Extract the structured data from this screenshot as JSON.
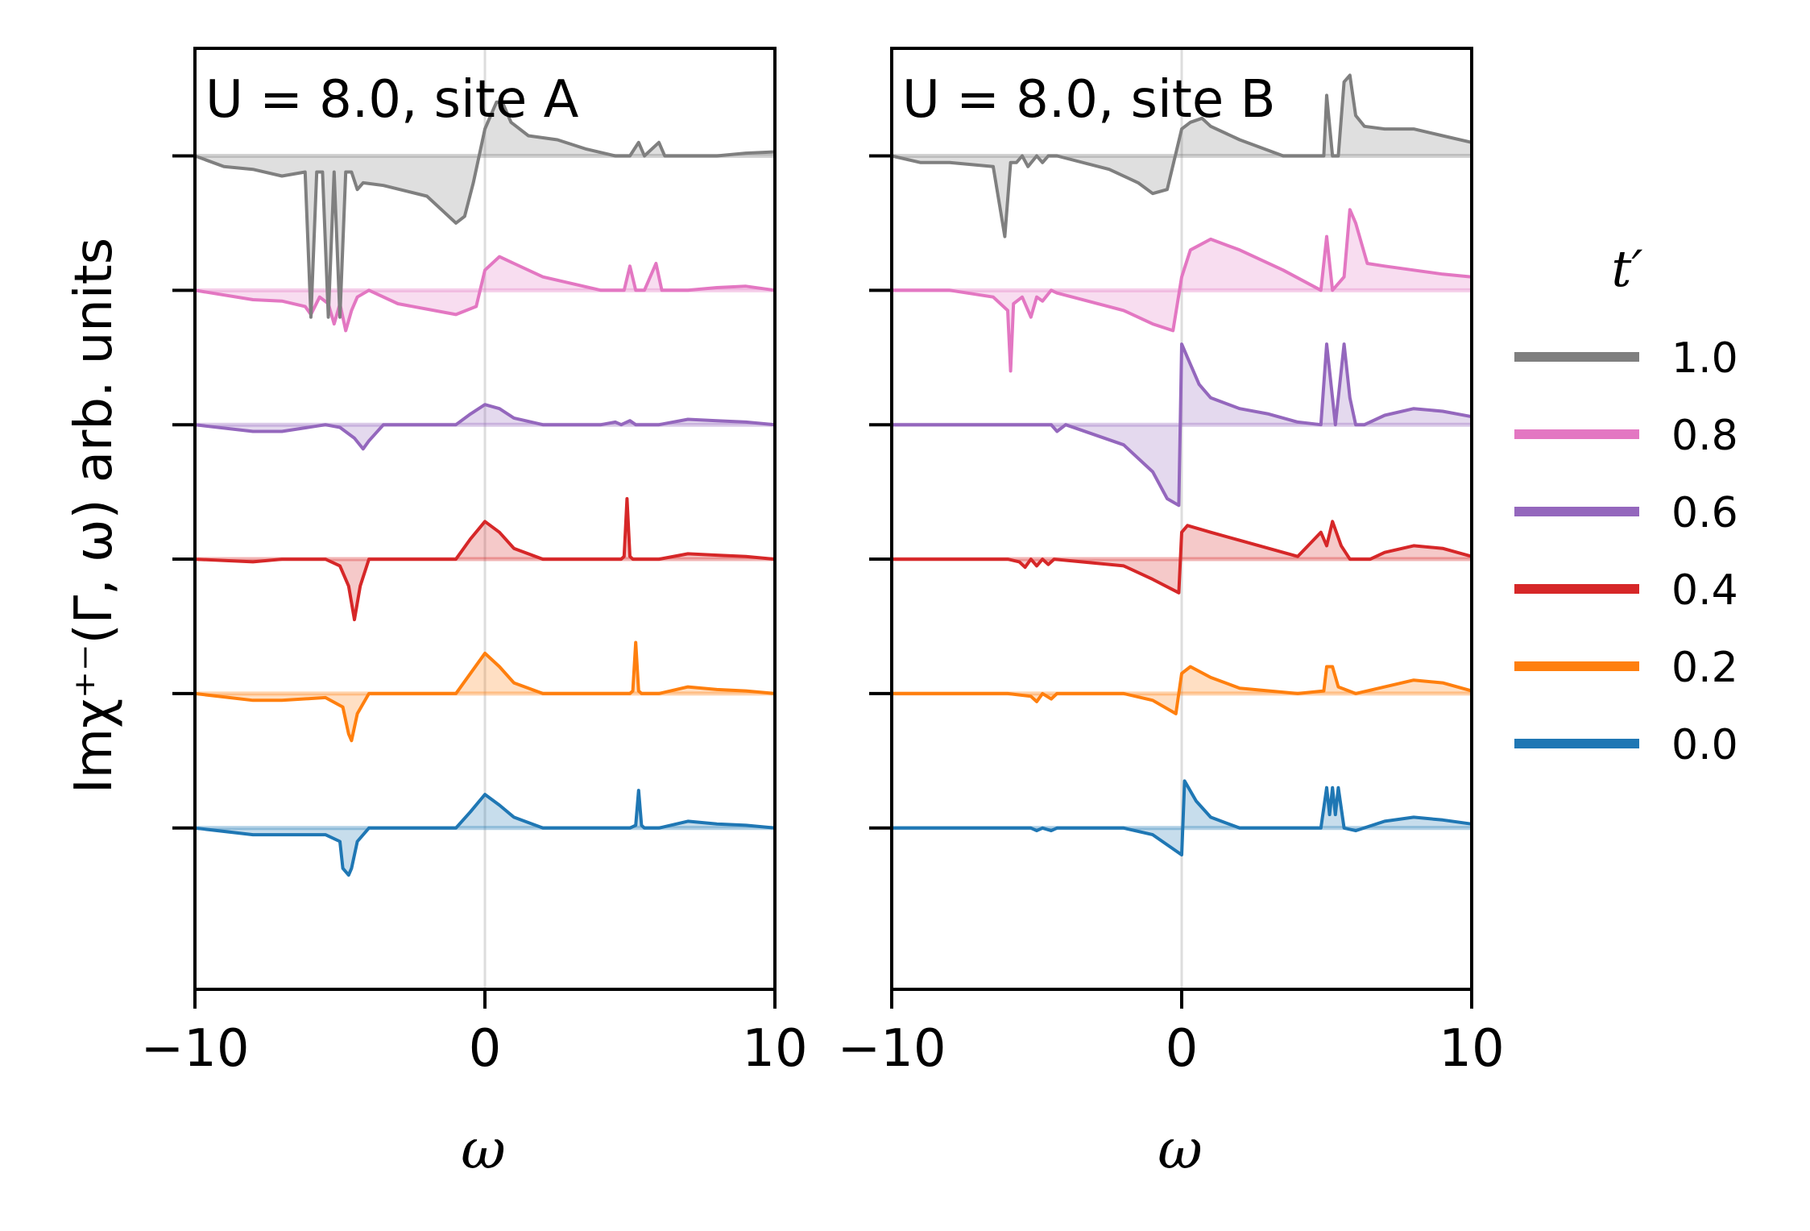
{
  "chart_data": {
    "type": "line",
    "ylabel": "Imχ⁺⁻(Γ, ω) arb. units",
    "xlabel": "ω",
    "xlim": [
      -10,
      10
    ],
    "xticks": [
      -10,
      0,
      10
    ],
    "xtick_labels": [
      "−10",
      "0",
      "10"
    ],
    "legend": {
      "title": "t′",
      "placement": "right",
      "entries": [
        {
          "label": "1.0",
          "color": "#7f7f7f"
        },
        {
          "label": "0.8",
          "color": "#e377c2"
        },
        {
          "label": "0.6",
          "color": "#9467bd"
        },
        {
          "label": "0.4",
          "color": "#d62728"
        },
        {
          "label": "0.2",
          "color": "#ff7f0e"
        },
        {
          "label": "0.0",
          "color": "#1f77b4"
        }
      ]
    },
    "offset_spacing": 1,
    "ylim": [
      -1.2,
      5.8
    ],
    "panels": [
      {
        "title": "U = 8.0, site A",
        "series": [
          {
            "name": "0.0",
            "color": "#1f77b4",
            "offset": 0,
            "x": [
              -10,
              -8,
              -7,
              -5.5,
              -5,
              -4.9,
              -4.7,
              -4.6,
              -4.4,
              -4,
              -1,
              -0.5,
              0,
              0.5,
              1,
              2,
              4,
              5,
              5.2,
              5.3,
              5.4,
              5.5,
              6,
              7,
              8,
              9,
              10
            ],
            "y": [
              0,
              -0.05,
              -0.05,
              -0.05,
              -0.1,
              -0.3,
              -0.35,
              -0.3,
              -0.1,
              0,
              0,
              0.12,
              0.25,
              0.17,
              0.08,
              0,
              0,
              0,
              0.02,
              0.28,
              0.02,
              0,
              0,
              0.05,
              0.03,
              0.02,
              0
            ]
          },
          {
            "name": "0.2",
            "color": "#ff7f0e",
            "offset": 1,
            "x": [
              -10,
              -8,
              -7,
              -5.5,
              -4.9,
              -4.7,
              -4.6,
              -4.4,
              -4,
              -1,
              -0.5,
              0,
              0.5,
              1,
              2,
              4,
              5,
              5.1,
              5.2,
              5.3,
              5.4,
              6,
              7,
              8,
              9,
              10
            ],
            "y": [
              0,
              -0.05,
              -0.05,
              -0.03,
              -0.1,
              -0.3,
              -0.35,
              -0.15,
              0,
              0,
              0.15,
              0.3,
              0.2,
              0.08,
              0,
              0,
              0,
              0.02,
              0.38,
              0.02,
              0,
              0,
              0.05,
              0.03,
              0.02,
              0
            ]
          },
          {
            "name": "0.4",
            "color": "#d62728",
            "offset": 2,
            "x": [
              -10,
              -8,
              -7,
              -5.5,
              -5,
              -4.7,
              -4.5,
              -4.3,
              -4,
              -1,
              -0.5,
              0,
              0.5,
              1,
              2,
              4,
              4.7,
              4.8,
              4.9,
              5,
              5.1,
              6,
              7,
              8,
              9,
              10
            ],
            "y": [
              0,
              -0.02,
              0,
              0,
              -0.05,
              -0.2,
              -0.45,
              -0.2,
              0,
              0,
              0.15,
              0.28,
              0.2,
              0.08,
              0,
              0,
              0,
              0.02,
              0.45,
              0.02,
              0,
              0,
              0.04,
              0.03,
              0.02,
              0
            ]
          },
          {
            "name": "0.6",
            "color": "#9467bd",
            "offset": 3,
            "x": [
              -10,
              -8,
              -7,
              -5.5,
              -5,
              -4.5,
              -4.2,
              -4,
              -3.5,
              -1,
              -0.5,
              0,
              0.5,
              1,
              2,
              4,
              4.5,
              4.7,
              5,
              5.2,
              5.5,
              6,
              7,
              8,
              9,
              10
            ],
            "y": [
              0,
              -0.05,
              -0.05,
              0,
              -0.02,
              -0.1,
              -0.18,
              -0.12,
              0,
              0,
              0.08,
              0.15,
              0.12,
              0.05,
              0,
              0,
              0.02,
              0,
              0.03,
              0,
              0,
              0,
              0.04,
              0.03,
              0.02,
              0
            ]
          },
          {
            "name": "0.8",
            "color": "#e377c2",
            "offset": 4,
            "x": [
              -10,
              -8,
              -7,
              -6.2,
              -6,
              -5.7,
              -5.4,
              -5.2,
              -5,
              -4.8,
              -4.6,
              -4.4,
              -4,
              -3,
              -1,
              -0.3,
              0,
              0.5,
              1,
              2,
              4,
              4.8,
              5,
              5.2,
              5.5,
              5.9,
              6.1,
              6.4,
              7,
              8,
              9,
              10
            ],
            "y": [
              0,
              -0.07,
              -0.08,
              -0.12,
              -0.18,
              -0.05,
              -0.1,
              -0.25,
              -0.1,
              -0.3,
              -0.15,
              -0.05,
              0,
              -0.1,
              -0.18,
              -0.12,
              0.15,
              0.25,
              0.2,
              0.1,
              0,
              0,
              0.18,
              0,
              0,
              0.2,
              0,
              0,
              0,
              0.02,
              0.03,
              0
            ]
          },
          {
            "name": "1.0",
            "color": "#7f7f7f",
            "offset": 5,
            "x": [
              -10,
              -9,
              -8,
              -7,
              -6.2,
              -6,
              -5.8,
              -5.6,
              -5.4,
              -5.2,
              -5.0,
              -4.8,
              -4.6,
              -4.4,
              -4.2,
              -3.5,
              -2,
              -1.5,
              -1,
              -0.7,
              -0.4,
              0,
              0.4,
              0.6,
              0.9,
              1.5,
              2.5,
              3.5,
              4.5,
              5,
              5.3,
              5.5,
              6,
              6.2,
              7,
              8,
              9,
              10
            ],
            "y": [
              0,
              -0.08,
              -0.1,
              -0.15,
              -0.12,
              -1.2,
              -0.12,
              -0.12,
              -1.2,
              -0.12,
              -1.2,
              -0.12,
              -0.12,
              -0.25,
              -0.2,
              -0.22,
              -0.3,
              -0.4,
              -0.5,
              -0.45,
              -0.2,
              0.2,
              0.4,
              0.4,
              0.25,
              0.15,
              0.12,
              0.05,
              0,
              0,
              0.1,
              0,
              0.1,
              0,
              0,
              0,
              0.02,
              0.03
            ]
          }
        ]
      },
      {
        "title": "U = 8.0, site B",
        "series": [
          {
            "name": "0.0",
            "color": "#1f77b4",
            "offset": 0,
            "x": [
              -10,
              -8,
              -6,
              -5.2,
              -5,
              -4.8,
              -4.5,
              -4.3,
              -2,
              -1,
              0,
              0.1,
              0.5,
              1,
              2,
              4,
              4.8,
              5,
              5.1,
              5.2,
              5.3,
              5.4,
              5.6,
              6,
              7,
              8,
              9,
              10
            ],
            "y": [
              0,
              0,
              0,
              0,
              -0.02,
              0,
              -0.02,
              0,
              0,
              -0.05,
              -0.2,
              0.35,
              0.2,
              0.08,
              0,
              0,
              0,
              0.3,
              0.1,
              0.3,
              0.1,
              0.3,
              0,
              -0.02,
              0.05,
              0.08,
              0.06,
              0.03
            ]
          },
          {
            "name": "0.2",
            "color": "#ff7f0e",
            "offset": 1,
            "x": [
              -10,
              -8,
              -6,
              -5.2,
              -5,
              -4.8,
              -4.5,
              -4.3,
              -2,
              -1,
              -0.2,
              0,
              0.3,
              1,
              2,
              4,
              4.9,
              5,
              5.2,
              5.4,
              6,
              7,
              8,
              9,
              10
            ],
            "y": [
              0,
              0,
              0,
              -0.02,
              -0.06,
              0,
              -0.04,
              0,
              0,
              -0.05,
              -0.15,
              0.15,
              0.2,
              0.12,
              0.04,
              0,
              0.02,
              0.2,
              0.2,
              0.05,
              0,
              0.05,
              0.1,
              0.08,
              0.02
            ]
          },
          {
            "name": "0.4",
            "color": "#d62728",
            "offset": 2,
            "x": [
              -10,
              -8,
              -6,
              -5.6,
              -5.4,
              -5.2,
              -5,
              -4.8,
              -4.6,
              -4.4,
              -2,
              -1,
              -0.1,
              0,
              0.2,
              1,
              2,
              3,
              4,
              4.8,
              5,
              5.2,
              5.5,
              5.8,
              6.5,
              7,
              8,
              9,
              10
            ],
            "y": [
              0,
              0,
              0,
              -0.02,
              -0.06,
              0,
              -0.05,
              0,
              -0.04,
              0,
              -0.05,
              -0.15,
              -0.25,
              0.2,
              0.25,
              0.2,
              0.14,
              0.08,
              0.02,
              0.2,
              0.1,
              0.28,
              0.1,
              0,
              0,
              0.05,
              0.1,
              0.08,
              0.02
            ]
          },
          {
            "name": "0.6",
            "color": "#9467bd",
            "offset": 3,
            "x": [
              -10,
              -8,
              -6,
              -4.5,
              -4.3,
              -4,
              -2,
              -1,
              -0.5,
              -0.1,
              0,
              0.2,
              0.6,
              1,
              2,
              3,
              4,
              4.8,
              5,
              5.3,
              5.6,
              5.8,
              6,
              6.3,
              7,
              8,
              9,
              10
            ],
            "y": [
              0,
              0,
              0,
              0,
              -0.05,
              0,
              -0.15,
              -0.35,
              -0.55,
              -0.6,
              0.6,
              0.5,
              0.3,
              0.2,
              0.12,
              0.08,
              0.02,
              0,
              0.6,
              0,
              0.6,
              0.2,
              0,
              0,
              0.07,
              0.12,
              0.1,
              0.06
            ]
          },
          {
            "name": "0.8",
            "color": "#e377c2",
            "offset": 4,
            "x": [
              -10,
              -8,
              -6.5,
              -6,
              -5.9,
              -5.8,
              -5.5,
              -5.2,
              -5,
              -4.8,
              -4.5,
              -4.3,
              -2,
              -1,
              -0.3,
              0,
              0.3,
              1,
              2,
              3.5,
              4.8,
              5,
              5.2,
              5.6,
              5.8,
              6,
              6.4,
              7,
              8,
              9,
              10
            ],
            "y": [
              0,
              0,
              -0.05,
              -0.15,
              -0.6,
              -0.1,
              -0.05,
              -0.2,
              -0.05,
              -0.08,
              0,
              -0.02,
              -0.15,
              -0.25,
              -0.3,
              0.1,
              0.3,
              0.38,
              0.3,
              0.15,
              0,
              0.4,
              0,
              0.1,
              0.6,
              0.5,
              0.2,
              0.18,
              0.15,
              0.12,
              0.1
            ]
          },
          {
            "name": "1.0",
            "color": "#7f7f7f",
            "offset": 5,
            "x": [
              -10,
              -9,
              -8,
              -6.5,
              -6.1,
              -5.9,
              -5.7,
              -5.5,
              -5.3,
              -5,
              -4.8,
              -4.6,
              -4.3,
              -2.5,
              -1.5,
              -1,
              -0.5,
              0,
              0.3,
              0.7,
              1,
              2,
              3.5,
              4.9,
              5,
              5.2,
              5.4,
              5.6,
              5.8,
              6,
              6.3,
              7,
              8,
              9,
              10
            ],
            "y": [
              0,
              -0.05,
              -0.05,
              -0.08,
              -0.6,
              -0.05,
              -0.05,
              0,
              -0.08,
              0,
              -0.05,
              0,
              0,
              -0.1,
              -0.2,
              -0.28,
              -0.25,
              0.2,
              0.25,
              0.28,
              0.22,
              0.12,
              0,
              0,
              0.45,
              0,
              0,
              0.55,
              0.6,
              0.3,
              0.22,
              0.2,
              0.2,
              0.15,
              0.1
            ]
          }
        ]
      }
    ]
  }
}
